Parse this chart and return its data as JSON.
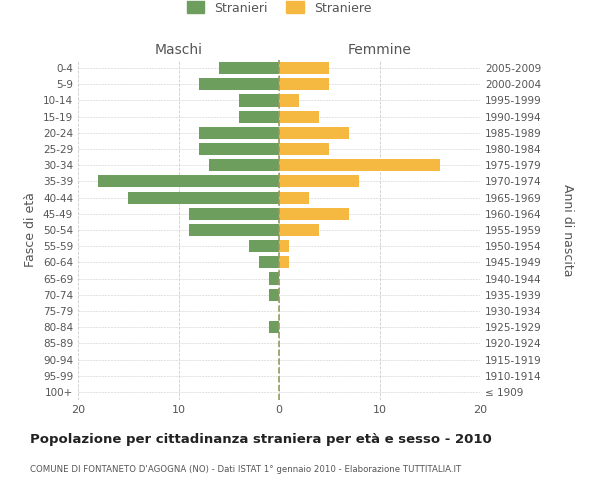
{
  "age_groups": [
    "100+",
    "95-99",
    "90-94",
    "85-89",
    "80-84",
    "75-79",
    "70-74",
    "65-69",
    "60-64",
    "55-59",
    "50-54",
    "45-49",
    "40-44",
    "35-39",
    "30-34",
    "25-29",
    "20-24",
    "15-19",
    "10-14",
    "5-9",
    "0-4"
  ],
  "birth_years": [
    "≤ 1909",
    "1910-1914",
    "1915-1919",
    "1920-1924",
    "1925-1929",
    "1930-1934",
    "1935-1939",
    "1940-1944",
    "1945-1949",
    "1950-1954",
    "1955-1959",
    "1960-1964",
    "1965-1969",
    "1970-1974",
    "1975-1979",
    "1980-1984",
    "1985-1989",
    "1990-1994",
    "1995-1999",
    "2000-2004",
    "2005-2009"
  ],
  "males": [
    0,
    0,
    0,
    0,
    1,
    0,
    1,
    1,
    2,
    3,
    9,
    9,
    15,
    18,
    7,
    8,
    8,
    4,
    4,
    8,
    6
  ],
  "females": [
    0,
    0,
    0,
    0,
    0,
    0,
    0,
    0,
    1,
    1,
    4,
    7,
    3,
    8,
    16,
    5,
    7,
    4,
    2,
    5,
    5
  ],
  "male_color": "#6e9e5e",
  "female_color": "#f5b942",
  "title": "Popolazione per cittadinanza straniera per età e sesso - 2010",
  "subtitle": "COMUNE DI FONTANETO D'AGOGNA (NO) - Dati ISTAT 1° gennaio 2010 - Elaborazione TUTTITALIA.IT",
  "ylabel_left": "Fasce di età",
  "ylabel_right": "Anni di nascita",
  "header_left": "Maschi",
  "header_right": "Femmine",
  "legend_males": "Stranieri",
  "legend_females": "Straniere",
  "xlim": 20,
  "bg_color": "#ffffff",
  "grid_color": "#cccccc",
  "text_color": "#555555",
  "title_color": "#222222",
  "dashed_color": "#999966"
}
